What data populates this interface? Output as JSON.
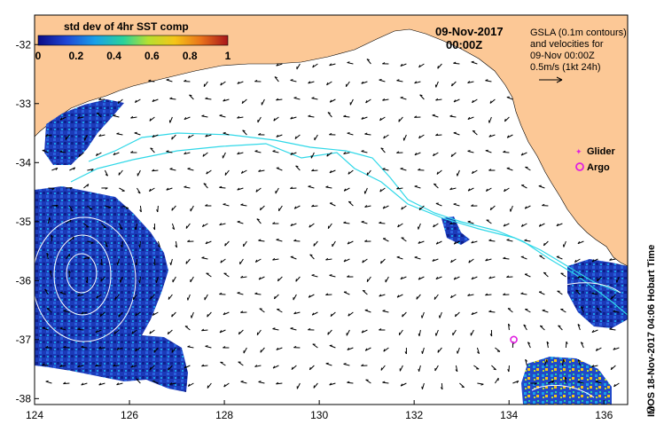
{
  "colorbar": {
    "title": "std dev of 4hr SST comp",
    "ticks": [
      "0",
      "0.2",
      "0.4",
      "0.6",
      "0.8",
      "1"
    ],
    "colors": [
      "#0b0b86",
      "#1f47d6",
      "#1aa0e8",
      "#2ad29a",
      "#b6e030",
      "#f5c518",
      "#e9721a",
      "#a8141a"
    ]
  },
  "header": {
    "date": "09-Nov-2017",
    "time": "00:00Z"
  },
  "info": {
    "line1": "GSLA (0.1m contours)",
    "line2": "and velocities for",
    "line3": "09-Nov 00:00Z",
    "line4": "0.5m/s (1kt 24h)"
  },
  "legend": {
    "glider": "Glider",
    "argo": "Argo",
    "glider_color": "#e020e0",
    "argo_color": "#e020e0"
  },
  "axes": {
    "x_ticks": [
      "124",
      "126",
      "128",
      "130",
      "132",
      "134",
      "136"
    ],
    "y_ticks": [
      "-32",
      "-33",
      "-34",
      "-35",
      "-36",
      "-37",
      "-38"
    ],
    "lon_range": [
      124,
      136.5
    ],
    "lat_range": [
      -38.1,
      -31.5
    ]
  },
  "markers": {
    "argo": {
      "lon": 134.1,
      "lat": -37.0
    }
  },
  "credit": "IMOS 18-Nov-2017 04:06 Hobart Time",
  "colors": {
    "land": "#fcc896",
    "coast_contour": "#30d8e8",
    "gsla_contour": "#ffffff",
    "ocean": "#ffffff"
  }
}
